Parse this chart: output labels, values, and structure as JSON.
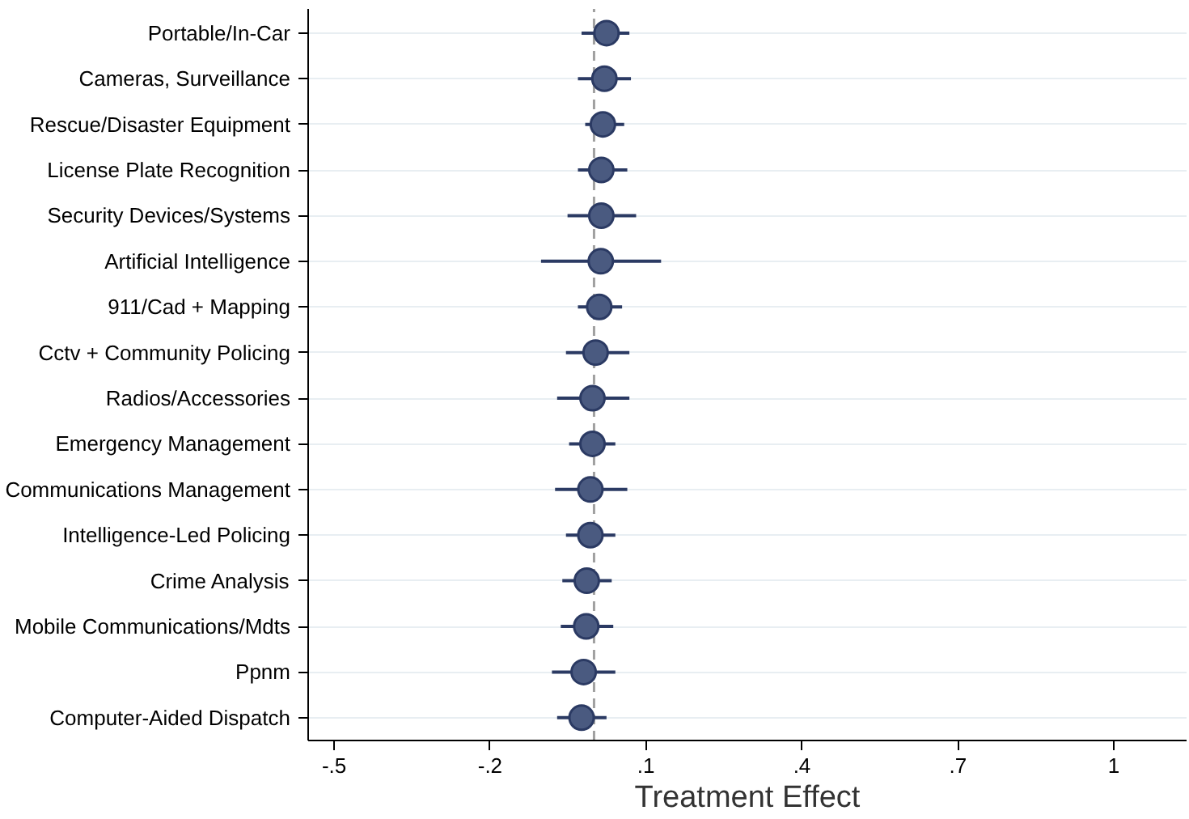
{
  "chart_data": {
    "type": "scatter",
    "orientation": "horizontal",
    "xlabel": "Treatment Effect",
    "categories": [
      "Portable/In-Car",
      "Cameras, Surveillance",
      "Rescue/Disaster Equipment",
      "License Plate Recognition",
      "Security Devices/Systems",
      "Artificial Intelligence",
      "911/Cad + Mapping",
      "Cctv + Community Policing",
      "Radios/Accessories",
      "Emergency Management",
      "Communications Management",
      "Intelligence-Led Policing",
      "Crime Analysis",
      "Mobile Communications/Mdts",
      "Ppnm",
      "Computer-Aided Dispatch"
    ],
    "series": [
      {
        "color": "#4a5a80",
        "values": [
          0.024,
          0.02,
          0.017,
          0.014,
          0.014,
          0.013,
          0.01,
          0.003,
          -0.003,
          -0.003,
          -0.007,
          -0.007,
          -0.014,
          -0.015,
          -0.02,
          -0.024
        ],
        "errors": [
          [
            -0.024,
            0.068
          ],
          [
            -0.031,
            0.071
          ],
          [
            -0.017,
            0.058
          ],
          [
            -0.031,
            0.064
          ],
          [
            -0.051,
            0.081
          ],
          [
            -0.102,
            0.129
          ],
          [
            -0.031,
            0.054
          ],
          [
            -0.054,
            0.068
          ],
          [
            -0.071,
            0.068
          ],
          [
            -0.048,
            0.041
          ],
          [
            -0.075,
            0.064
          ],
          [
            -0.054,
            0.041
          ],
          [
            -0.061,
            0.034
          ],
          [
            -0.064,
            0.037
          ],
          [
            -0.081,
            0.041
          ],
          [
            -0.071,
            0.024
          ]
        ]
      }
    ],
    "xlim": [
      -0.55,
      1.14
    ],
    "xticks": [
      {
        "value": -0.5,
        "label": "-.5"
      },
      {
        "value": -0.2,
        "label": "-.2"
      },
      {
        "value": 0.1,
        "label": ".1"
      },
      {
        "value": 0.4,
        "label": ".4"
      },
      {
        "value": 0.7,
        "label": ".7"
      },
      1
    ],
    "grid": "y",
    "marker": "circle",
    "ref_lines": [
      {
        "axis": "x",
        "value": 0,
        "color": "#a0a0a0",
        "line_style": "dashed"
      }
    ]
  }
}
